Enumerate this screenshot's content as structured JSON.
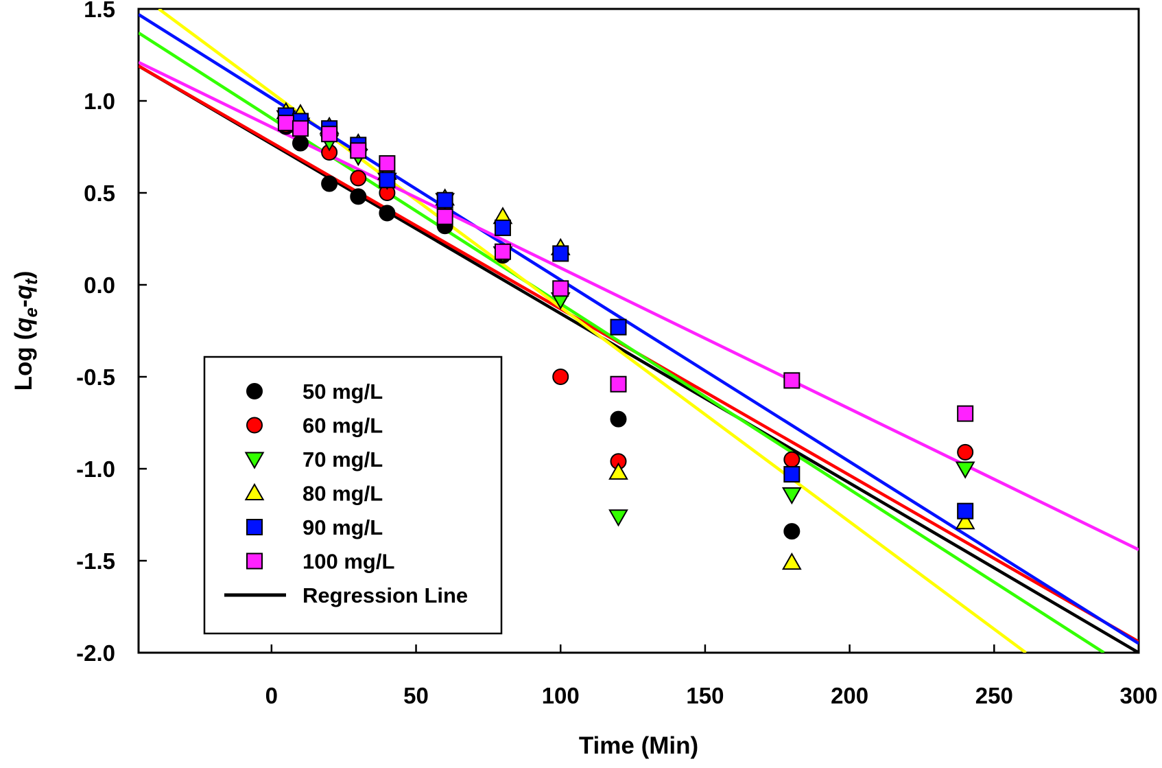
{
  "chart_data": {
    "type": "scatter",
    "title": "",
    "xlabel": "Time (Min)",
    "ylabel_parts": {
      "prefix": "Log (",
      "q1": "q",
      "sub1": "e",
      "dash": "-",
      "q2": "q",
      "sub2": "t",
      "suffix": ")"
    },
    "xlim": [
      -46,
      300
    ],
    "ylim": [
      -2.0,
      1.5
    ],
    "x_ticks": [
      0,
      50,
      100,
      150,
      200,
      250,
      300
    ],
    "x_tick_labels": [
      "0",
      "50",
      "100",
      "150",
      "200",
      "250",
      "300"
    ],
    "y_ticks": [
      -2.0,
      -1.5,
      -1.0,
      -0.5,
      0.0,
      0.5,
      1.0,
      1.5
    ],
    "y_tick_labels": [
      "-2.0",
      "-1.5",
      "-1.0",
      "-0.5",
      "0.0",
      "0.5",
      "1.0",
      "1.5"
    ],
    "legend_position": "bottom-left",
    "regression_label": "Regression Line",
    "series": [
      {
        "name": "50 mg/L",
        "marker": "circle",
        "color": "#000000",
        "x": [
          5,
          10,
          20,
          30,
          40,
          60,
          80,
          120,
          180
        ],
        "y": [
          0.86,
          0.77,
          0.55,
          0.48,
          0.39,
          0.32,
          0.16,
          -0.73,
          -1.34
        ],
        "fit_y": [
          1.19,
          -2.0
        ],
        "fit_x": [
          -46,
          300
        ]
      },
      {
        "name": "60 mg/L",
        "marker": "circle",
        "color": "#ff0000",
        "x": [
          5,
          20,
          30,
          40,
          60,
          80,
          100,
          120,
          180,
          240
        ],
        "y": [
          0.87,
          0.72,
          0.58,
          0.5,
          0.44,
          0.18,
          -0.5,
          -0.96,
          -0.95,
          -0.91
        ],
        "fit_y": [
          1.19,
          -1.94
        ],
        "fit_x": [
          -46,
          300
        ]
      },
      {
        "name": "70 mg/L",
        "marker": "triangle-down",
        "color": "#33ff00",
        "x": [
          5,
          10,
          20,
          30,
          40,
          60,
          80,
          100,
          120,
          180,
          240
        ],
        "y": [
          0.91,
          0.87,
          0.78,
          0.7,
          0.57,
          0.46,
          0.17,
          -0.08,
          -1.26,
          -1.14,
          -1.0
        ],
        "fit_y": [
          1.37,
          -2.0
        ],
        "fit_x": [
          -46,
          288
        ]
      },
      {
        "name": "80 mg/L",
        "marker": "triangle-up",
        "color": "#ffff00",
        "x": [
          5,
          10,
          20,
          30,
          40,
          60,
          80,
          100,
          120,
          180,
          240
        ],
        "y": [
          0.94,
          0.93,
          0.86,
          0.77,
          0.61,
          0.47,
          0.37,
          0.2,
          -1.02,
          -1.51,
          -1.29
        ],
        "fit_y": [
          1.5,
          -2.0
        ],
        "fit_x": [
          -39,
          261
        ]
      },
      {
        "name": "90 mg/L",
        "marker": "square",
        "color": "#0011ff",
        "x": [
          5,
          10,
          20,
          30,
          40,
          60,
          80,
          100,
          120,
          180,
          240
        ],
        "y": [
          0.92,
          0.89,
          0.85,
          0.76,
          0.57,
          0.46,
          0.31,
          0.17,
          -0.23,
          -1.03,
          -1.23
        ],
        "fit_y": [
          1.47,
          -1.95
        ],
        "fit_x": [
          -46,
          300
        ]
      },
      {
        "name": "100 mg/L",
        "marker": "square",
        "color": "#ff22ff",
        "x": [
          5,
          10,
          20,
          30,
          40,
          60,
          80,
          100,
          120,
          180,
          240
        ],
        "y": [
          0.88,
          0.85,
          0.82,
          0.73,
          0.66,
          0.37,
          0.18,
          -0.02,
          -0.54,
          -0.52,
          -0.7
        ],
        "fit_y": [
          1.21,
          -1.44
        ],
        "fit_x": [
          -46,
          300
        ]
      }
    ]
  }
}
